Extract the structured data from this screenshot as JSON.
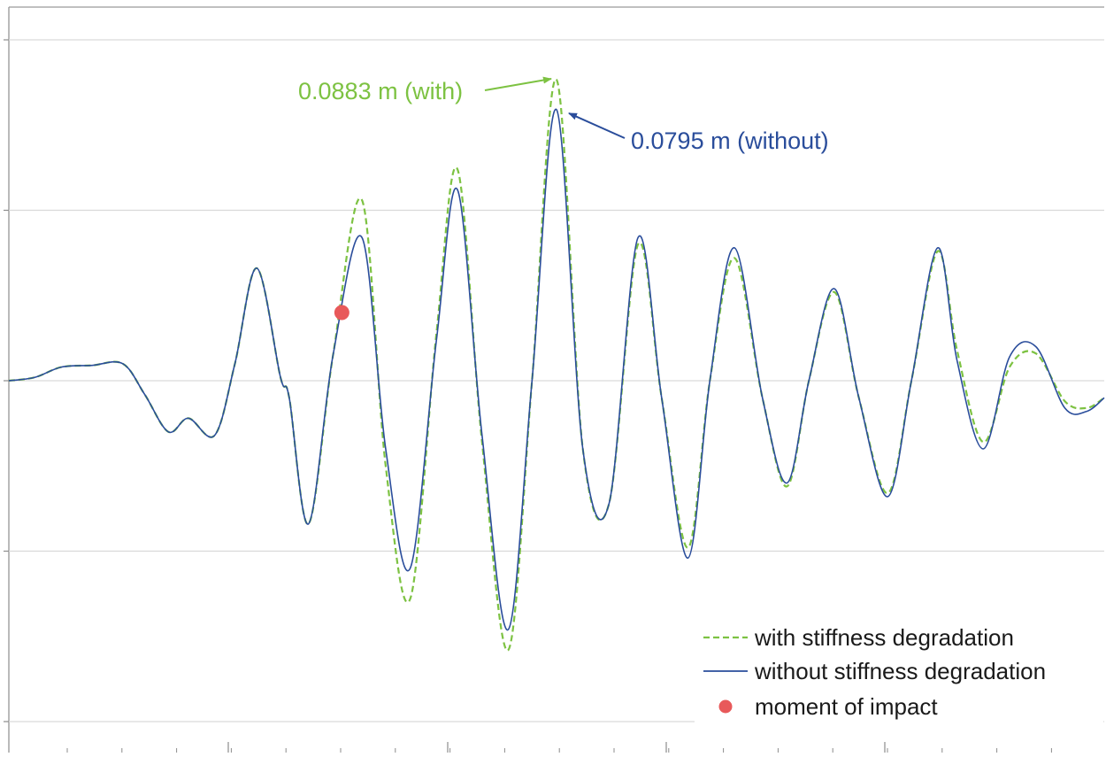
{
  "chart_data": {
    "type": "line",
    "title": "",
    "xlabel": "",
    "ylabel": "",
    "grid": true,
    "legend_position": "bottom-right",
    "ylim": [
      -0.1,
      0.1
    ],
    "y_gridlines": [
      -0.1,
      -0.05,
      0,
      0.05,
      0.1
    ],
    "xlim": [
      0,
      1250
    ],
    "series": [
      {
        "name": "with stiffness degradation",
        "style": "dashed",
        "color": "#7dc242",
        "x": [
          0,
          30,
          60,
          95,
          130,
          155,
          182,
          205,
          235,
          258,
          283,
          310,
          320,
          342,
          370,
          403,
          430,
          458,
          488,
          512,
          540,
          570,
          597,
          625,
          655,
          685,
          718,
          745,
          775,
          800,
          828,
          860,
          888,
          913,
          942,
          970,
          1003,
          1030,
          1060,
          1082,
          1112,
          1142,
          1172,
          1205,
          1230,
          1250
        ],
        "y": [
          0,
          0.001,
          0.004,
          0.0045,
          0.005,
          -0.004,
          -0.015,
          -0.011,
          -0.016,
          0.005,
          0.033,
          0.001,
          -0.005,
          -0.042,
          0.0075,
          0.053,
          -0.025,
          -0.064,
          0.014,
          0.062,
          -0.018,
          -0.079,
          0.0,
          0.0883,
          -0.02,
          -0.036,
          0.04,
          -0.005,
          -0.049,
          0.0,
          0.036,
          -0.005,
          -0.031,
          0.0,
          0.026,
          -0.005,
          -0.033,
          0.0,
          0.038,
          0.009,
          -0.018,
          0.004,
          0.008,
          -0.006,
          -0.008,
          -0.005
        ]
      },
      {
        "name": "without stiffness degradation",
        "style": "solid",
        "color": "#2a4d9b",
        "x": [
          0,
          30,
          60,
          95,
          130,
          155,
          182,
          205,
          235,
          258,
          283,
          310,
          320,
          342,
          370,
          403,
          430,
          458,
          488,
          512,
          540,
          570,
          597,
          625,
          655,
          685,
          718,
          745,
          775,
          800,
          828,
          860,
          888,
          913,
          942,
          970,
          1003,
          1030,
          1060,
          1082,
          1112,
          1142,
          1172,
          1205,
          1230,
          1250
        ],
        "y": [
          0,
          0.001,
          0.004,
          0.0045,
          0.005,
          -0.004,
          -0.015,
          -0.011,
          -0.016,
          0.005,
          0.033,
          0.001,
          -0.005,
          -0.042,
          0.0075,
          0.042,
          -0.02,
          -0.055,
          0.012,
          0.056,
          -0.016,
          -0.073,
          0.0,
          0.0795,
          -0.02,
          -0.036,
          0.042,
          -0.005,
          -0.052,
          0.0,
          0.039,
          -0.005,
          -0.03,
          0.0,
          0.027,
          -0.005,
          -0.034,
          0.0,
          0.039,
          0.006,
          -0.02,
          0.007,
          0.01,
          -0.008,
          -0.009,
          -0.005
        ]
      }
    ],
    "markers": [
      {
        "name": "moment of impact",
        "x": 380,
        "y": 0.02,
        "color": "#e8595a"
      }
    ],
    "annotations": [
      {
        "text": "0.0883 m (with)",
        "target_x": 625,
        "target_y": 0.0883,
        "color": "#7dc242"
      },
      {
        "text": "0.0795 m (without)",
        "target_x": 625,
        "target_y": 0.0795,
        "color": "#2a4d9b"
      }
    ]
  }
}
